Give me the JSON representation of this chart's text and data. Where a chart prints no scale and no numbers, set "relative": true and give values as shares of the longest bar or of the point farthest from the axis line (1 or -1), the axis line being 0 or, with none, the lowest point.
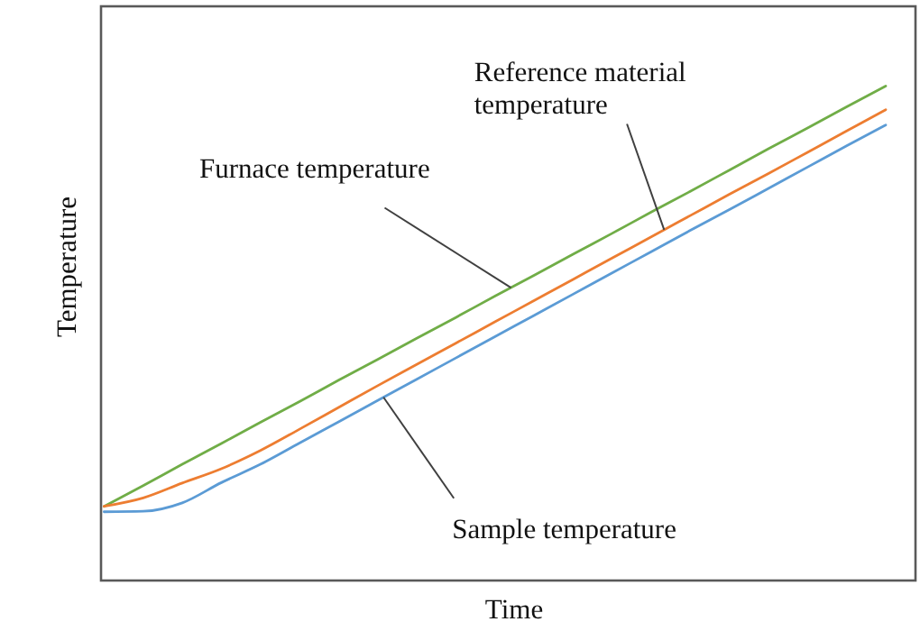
{
  "chart_data": {
    "type": "line",
    "xlabel": "Time",
    "ylabel": "Temperature",
    "relative": true,
    "line_style": "solid",
    "categories": [
      null,
      null,
      null,
      null,
      null,
      null,
      null,
      null,
      null,
      null,
      null,
      null,
      null,
      null,
      null,
      null,
      null,
      null,
      null,
      null,
      null
    ],
    "series": [
      {
        "color": "#70ad47",
        "values": [
          0.15,
          0.192,
          0.235,
          0.277,
          0.32,
          0.362,
          0.405,
          0.447,
          0.49,
          0.532,
          0.575,
          0.617,
          0.66,
          0.702,
          0.745,
          0.787,
          0.83,
          0.873,
          0.915,
          0.958,
          1
        ]
      },
      {
        "color": "#ed7d31",
        "values": [
          0.15,
          0.167,
          0.197,
          0.226,
          0.263,
          0.306,
          0.35,
          0.394,
          0.437,
          0.48,
          0.523,
          0.566,
          0.609,
          0.652,
          0.695,
          0.738,
          0.781,
          0.823,
          0.866,
          0.909,
          0.952
        ]
      },
      {
        "color": "#5b9bd5",
        "values": [
          0.139,
          0.14,
          0.157,
          0.198,
          0.235,
          0.278,
          0.321,
          0.364,
          0.407,
          0.45,
          0.493,
          0.536,
          0.579,
          0.622,
          0.665,
          0.708,
          0.75,
          0.793,
          0.836,
          0.879,
          0.921
        ]
      }
    ],
    "annotations": [
      "Furnace temperature",
      "Reference material temperature",
      "Sample temperature"
    ]
  }
}
